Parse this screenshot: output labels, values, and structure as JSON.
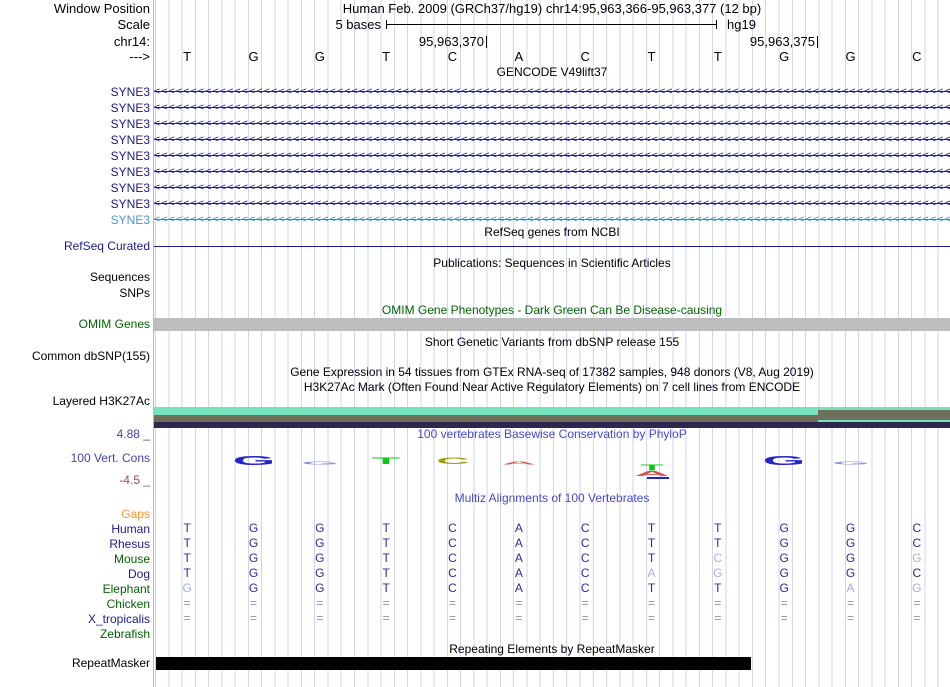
{
  "header": {
    "window_position_label": "Window Position",
    "assembly_line": "Human Feb. 2009 (GRCh37/hg19)   chr14:95,963,366-95,963,377 (12 bp)",
    "scale_label": "Scale",
    "scale_value": "5 bases",
    "assembly_short": "hg19",
    "chrom_label": "chr14:",
    "coord_left": "95,963,370",
    "coord_right": "95,963,375",
    "strand_label": "--->"
  },
  "sequence": {
    "bases": [
      "T",
      "G",
      "G",
      "T",
      "C",
      "A",
      "C",
      "T",
      "T",
      "G",
      "G",
      "C"
    ]
  },
  "tracks": {
    "gencode": {
      "title": "GENCODE V49lift37",
      "genes": [
        {
          "label": "SYNE3",
          "variant": "dark"
        },
        {
          "label": "SYNE3",
          "variant": "dark"
        },
        {
          "label": "SYNE3",
          "variant": "dark"
        },
        {
          "label": "SYNE3",
          "variant": "dark"
        },
        {
          "label": "SYNE3",
          "variant": "dark"
        },
        {
          "label": "SYNE3",
          "variant": "dark"
        },
        {
          "label": "SYNE3",
          "variant": "dark"
        },
        {
          "label": "SYNE3",
          "variant": "dark"
        },
        {
          "label": "SYNE3",
          "variant": "light"
        }
      ]
    },
    "refseq": {
      "title": "RefSeq genes from NCBI",
      "label": "RefSeq Curated"
    },
    "publications": {
      "title": "Publications: Sequences in Scientific Articles",
      "sequences_label": "Sequences",
      "snps_label": "SNPs"
    },
    "omim": {
      "title": "OMIM Gene Phenotypes - Dark Green Can Be Disease-causing",
      "label": "OMIM Genes"
    },
    "dbsnp": {
      "title": "Short Genetic Variants from dbSNP release 155",
      "label": "Common dbSNP(155)"
    },
    "gtex": {
      "title": "Gene Expression in 54 tissues from GTEx RNA-seq of 17382 samples, 948 donors (V8, Aug 2019)"
    },
    "h3k27ac": {
      "title": "H3K27Ac Mark (Often Found Near Active Regulatory Elements) on 7 cell lines from ENCODE",
      "label": "Layered H3K27Ac"
    },
    "conservation": {
      "title": "100 vertebrates Basewise Conservation by PhyloP",
      "label": "100 Vert. Cons",
      "max_label": "4.88 _",
      "min_label": "-4.5 _"
    },
    "multiz": {
      "title": "Multiz Alignments of 100 Vertebrates"
    },
    "repeatmasker": {
      "title": "Repeating Elements by RepeatMasker",
      "label": "RepeatMasker"
    }
  },
  "alignment": {
    "rows": [
      {
        "name": "Gaps",
        "color": "orange",
        "cells": [],
        "light": []
      },
      {
        "name": "Human",
        "color": "navy",
        "cells": [
          "T",
          "G",
          "G",
          "T",
          "C",
          "A",
          "C",
          "T",
          "T",
          "G",
          "G",
          "C"
        ],
        "light": []
      },
      {
        "name": "Rhesus",
        "color": "navy",
        "cells": [
          "T",
          "G",
          "G",
          "T",
          "C",
          "A",
          "C",
          "T",
          "T",
          "G",
          "G",
          "C"
        ],
        "light": []
      },
      {
        "name": "Mouse",
        "color": "green",
        "cells": [
          "T",
          "G",
          "G",
          "T",
          "C",
          "A",
          "C",
          "T",
          "C",
          "G",
          "G",
          "G"
        ],
        "light": [
          8,
          11
        ]
      },
      {
        "name": "Dog",
        "color": "navy",
        "cells": [
          "T",
          "G",
          "G",
          "T",
          "C",
          "A",
          "C",
          "A",
          "G",
          "G",
          "G",
          "C"
        ],
        "light": [
          7,
          8
        ]
      },
      {
        "name": "Elephant",
        "color": "green",
        "cells": [
          "G",
          "G",
          "G",
          "T",
          "C",
          "A",
          "C",
          "T",
          "T",
          "G",
          "A",
          "G"
        ],
        "light": [
          0,
          10,
          11
        ]
      },
      {
        "name": "Chicken",
        "color": "green",
        "cells": [
          "=",
          "=",
          "=",
          "=",
          "=",
          "=",
          "=",
          "=",
          "=",
          "=",
          "=",
          "="
        ],
        "light": []
      },
      {
        "name": "X_tropicalis",
        "color": "navy",
        "cells": [
          "=",
          "=",
          "=",
          "=",
          "=",
          "=",
          "=",
          "=",
          "=",
          "=",
          "=",
          "="
        ],
        "light": []
      },
      {
        "name": "Zebrafish",
        "color": "green",
        "cells": [],
        "light": []
      }
    ]
  },
  "phylop": {
    "glyphs": [
      {
        "base": 1,
        "letter": "G",
        "style": "strong",
        "color_key": "phylop_blue"
      },
      {
        "base": 2,
        "letter": "G",
        "style": "weak",
        "color_key": "phylop_lightblue"
      },
      {
        "base": 3,
        "letter": "T",
        "style": "medium",
        "color_key": "phylop_green"
      },
      {
        "base": 4,
        "letter": "C",
        "style": "medium",
        "color_key": "phylop_olive"
      },
      {
        "base": 5,
        "letter": "A",
        "style": "weak",
        "color_key": "phylop_red"
      },
      {
        "base": 7,
        "letter": "T",
        "style": "negative",
        "color_key": "phylop_mixed"
      },
      {
        "base": 9,
        "letter": "G",
        "style": "strong",
        "color_key": "phylop_blue"
      },
      {
        "base": 10,
        "letter": "G",
        "style": "weak",
        "color_key": "phylop_lightblue"
      }
    ]
  },
  "colors": {
    "navy": "#1b1b8e",
    "gene_light_label": "#4f92d8",
    "gene_light_line": "#2596be",
    "green": "#006400",
    "orange": "#fb9425",
    "cons_blue_title": "#4848c8",
    "cons_max": "#4444aa",
    "cons_min": "#a04a4a",
    "align_dark": "#2b2b9e",
    "align_light": "#a8b0dc",
    "align_eq": "#8890d0",
    "grid": "#ced4f2",
    "guide_pink": "#f2a3a3",
    "omim_gray": "#bdbdbd",
    "h3k_teal": "#76e3bd",
    "h3k_gray": "#6f6f5c",
    "h3k_dark": "#2e2750",
    "repeat_black": "#000000",
    "phylop_blue": "#2424cc",
    "phylop_lightblue": "#9096e0",
    "phylop_green": "#12c412",
    "phylop_olive": "#a0a018",
    "phylop_red": "#d85050"
  }
}
